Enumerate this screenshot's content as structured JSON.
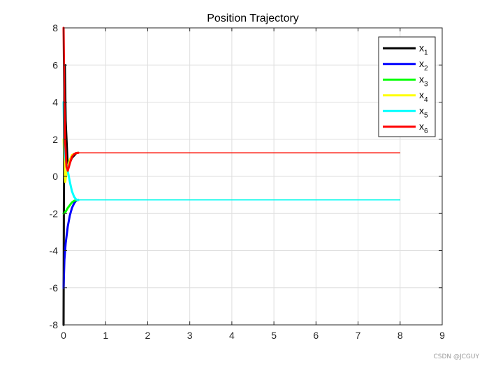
{
  "chart_data": {
    "type": "line",
    "title": "Position Trajectory",
    "xlabel": "",
    "ylabel": "",
    "xlim": [
      0,
      9
    ],
    "ylim": [
      -8,
      8
    ],
    "xticks": [
      "0",
      "1",
      "2",
      "3",
      "4",
      "5",
      "6",
      "7",
      "8",
      "9"
    ],
    "yticks": [
      "-8",
      "-6",
      "-4",
      "-2",
      "0",
      "2",
      "4",
      "6",
      "8"
    ],
    "grid": true,
    "legend_position": "top-right",
    "series": [
      {
        "name": "x",
        "subscript": "1",
        "color": "#000000",
        "x": [
          0,
          0.003,
          0.006,
          0.01,
          0.015,
          0.02,
          0.03,
          0.05,
          0.1,
          0.2,
          0.3,
          0.35,
          8
        ],
        "y": [
          -8,
          -5,
          -2,
          0,
          2,
          4,
          6,
          3,
          0.5,
          1.0,
          1.25,
          1.27,
          1.27
        ]
      },
      {
        "name": "x",
        "subscript": "2",
        "color": "#0000ff",
        "x": [
          0,
          0.02,
          0.05,
          0.1,
          0.15,
          0.2,
          0.25,
          0.3,
          0.35,
          8
        ],
        "y": [
          -6,
          -4.5,
          -3.6,
          -2.7,
          -2.1,
          -1.7,
          -1.45,
          -1.3,
          -1.27,
          -1.27
        ]
      },
      {
        "name": "x",
        "subscript": "3",
        "color": "#00ff00",
        "x": [
          0,
          0.05,
          0.1,
          0.15,
          0.2,
          0.25,
          0.3,
          0.35,
          8
        ],
        "y": [
          -2,
          -1.9,
          -1.7,
          -1.55,
          -1.4,
          -1.32,
          -1.28,
          -1.27,
          -1.27
        ]
      },
      {
        "name": "x",
        "subscript": "4",
        "color": "#ffff00",
        "x": [
          0,
          0.02,
          0.04,
          0.06,
          0.1,
          0.15,
          0.2,
          0.3,
          0.35,
          8
        ],
        "y": [
          2,
          0.5,
          -0.3,
          0.0,
          0.5,
          0.9,
          1.15,
          1.26,
          1.27,
          1.27
        ]
      },
      {
        "name": "x",
        "subscript": "5",
        "color": "#00ffff",
        "x": [
          0,
          0.02,
          0.05,
          0.1,
          0.15,
          0.2,
          0.25,
          0.3,
          0.35,
          8
        ],
        "y": [
          4,
          1.5,
          0.9,
          0.3,
          -0.3,
          -0.8,
          -1.1,
          -1.25,
          -1.27,
          -1.27
        ]
      },
      {
        "name": "x",
        "subscript": "6",
        "color": "#ff0000",
        "x": [
          0,
          0.01,
          0.02,
          0.04,
          0.07,
          0.1,
          0.15,
          0.2,
          0.25,
          0.3,
          0.35,
          8
        ],
        "y": [
          8,
          6,
          4,
          1.8,
          0.5,
          0.3,
          0.7,
          1.05,
          1.2,
          1.26,
          1.27,
          1.27
        ]
      }
    ]
  },
  "watermark": "CSDN @JCGUY"
}
